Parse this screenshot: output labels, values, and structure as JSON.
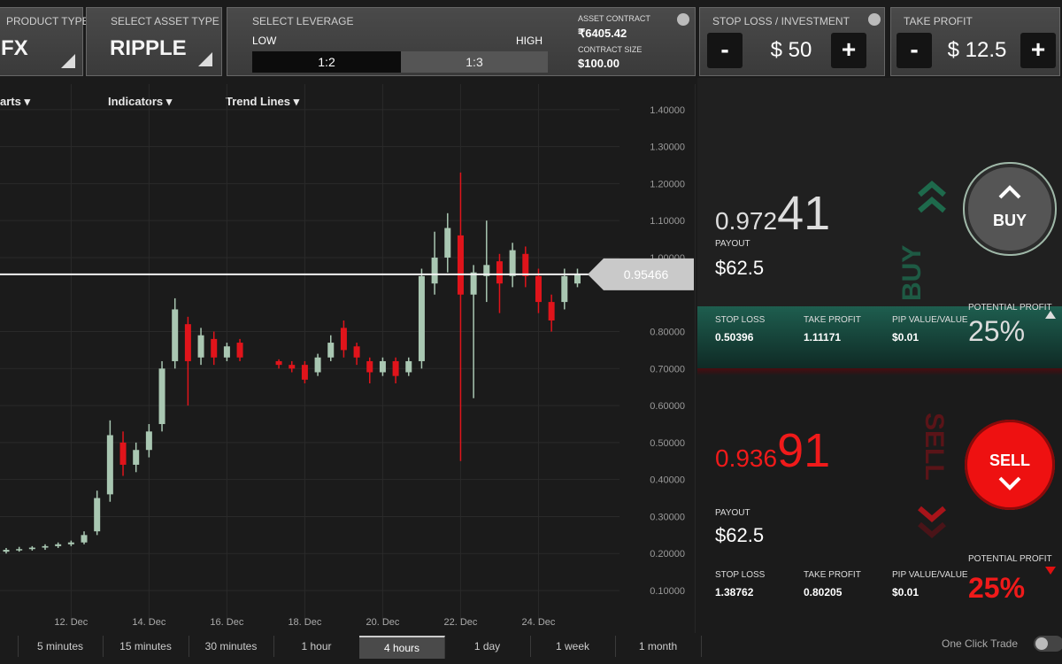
{
  "header": {
    "product": {
      "label": "PRODUCT TYPE",
      "value": "FX"
    },
    "asset": {
      "label": "SELECT ASSET TYPE",
      "value": "RIPPLE"
    },
    "leverage": {
      "label": "SELECT LEVERAGE",
      "low": "LOW",
      "high": "HIGH",
      "options": [
        "1:2",
        "1:3"
      ]
    },
    "contract": {
      "asset_label": "ASSET CONTRACT",
      "asset_value": "₹6405.42",
      "size_label": "CONTRACT SIZE",
      "size_value": "$100.00"
    },
    "stop_loss": {
      "label": "STOP LOSS / INVESTMENT",
      "minus": "-",
      "value": "$ 50",
      "plus": "+"
    },
    "take_profit": {
      "label": "TAKE PROFIT",
      "minus": "-",
      "value": "$ 12.5",
      "plus": "+"
    }
  },
  "toolbar": [
    "arts",
    "Indicators",
    "Trend Lines"
  ],
  "chart_data": {
    "type": "candlestick",
    "up_color": "#a9c7b2",
    "down_color": "#e0141b",
    "grid": true,
    "categories": [
      null,
      null,
      null,
      null,
      null,
      "12. Dec",
      null,
      null,
      null,
      null,
      null,
      "14. Dec",
      null,
      null,
      null,
      null,
      null,
      "16. Dec",
      null,
      null,
      null,
      null,
      null,
      "18. Dec",
      null,
      null,
      null,
      null,
      null,
      "20. Dec",
      null,
      null,
      null,
      null,
      null,
      "22. Dec",
      null,
      null,
      null,
      null,
      null,
      "24. Dec",
      null,
      null,
      null
    ],
    "open": [
      0.205,
      0.21,
      0.212,
      0.216,
      0.22,
      0.225,
      0.23,
      0.26,
      0.36,
      0.5,
      0.44,
      0.48,
      0.55,
      0.72,
      0.82,
      0.73,
      0.78,
      0.73,
      0.77,
      null,
      null,
      0.72,
      0.71,
      0.71,
      0.69,
      0.73,
      0.81,
      0.76,
      0.72,
      0.69,
      0.72,
      0.69,
      0.72,
      0.93,
      1.0,
      1.06,
      0.9,
      0.95,
      0.99,
      0.95,
      1.01,
      0.95,
      0.88,
      0.88,
      0.93
    ],
    "close": [
      0.21,
      0.212,
      0.216,
      0.22,
      0.225,
      0.23,
      0.25,
      0.35,
      0.52,
      0.44,
      0.48,
      0.53,
      0.7,
      0.86,
      0.72,
      0.79,
      0.73,
      0.76,
      0.73,
      null,
      null,
      0.71,
      0.7,
      0.67,
      0.73,
      0.77,
      0.75,
      0.73,
      0.69,
      0.72,
      0.68,
      0.72,
      0.95,
      1.0,
      1.08,
      0.9,
      0.96,
      0.98,
      0.93,
      1.02,
      0.95,
      0.88,
      0.83,
      0.95,
      0.95466
    ],
    "high": [
      0.215,
      0.218,
      0.22,
      0.225,
      0.23,
      0.235,
      0.26,
      0.37,
      0.56,
      0.53,
      0.5,
      0.55,
      0.72,
      0.89,
      0.84,
      0.81,
      0.8,
      0.77,
      0.78,
      null,
      null,
      0.725,
      0.72,
      0.72,
      0.74,
      0.79,
      0.83,
      0.77,
      0.73,
      0.73,
      0.73,
      0.73,
      0.97,
      1.07,
      1.12,
      1.23,
      0.98,
      1.1,
      1.01,
      1.04,
      1.03,
      0.97,
      0.9,
      0.97,
      0.97
    ],
    "low": [
      0.2,
      0.205,
      0.208,
      0.21,
      0.215,
      0.22,
      0.225,
      0.25,
      0.34,
      0.41,
      0.42,
      0.46,
      0.53,
      0.7,
      0.6,
      0.71,
      0.71,
      0.72,
      0.72,
      null,
      null,
      0.7,
      0.69,
      0.66,
      0.68,
      0.72,
      0.73,
      0.71,
      0.66,
      0.68,
      0.66,
      0.68,
      0.7,
      0.9,
      0.96,
      0.45,
      0.62,
      0.88,
      0.85,
      0.92,
      0.92,
      0.85,
      0.8,
      0.86,
      0.92
    ],
    "current_price": 0.95466,
    "ylim": [
      0.045,
      1.457
    ],
    "yticks": [
      {
        "value": 0.1,
        "label": "0.10000"
      },
      {
        "value": 0.2,
        "label": "0.20000"
      },
      {
        "value": 0.3,
        "label": "0.30000"
      },
      {
        "value": 0.4,
        "label": "0.40000"
      },
      {
        "value": 0.5,
        "label": "0.50000"
      },
      {
        "value": 0.6,
        "label": "0.60000"
      },
      {
        "value": 0.7,
        "label": "0.70000"
      },
      {
        "value": 0.8,
        "label": "0.80000"
      },
      {
        "value": 1.0,
        "label": "1.00000"
      },
      {
        "value": 1.1,
        "label": "1.10000"
      },
      {
        "value": 1.2,
        "label": "1.20000"
      },
      {
        "value": 1.3,
        "label": "1.30000"
      },
      {
        "value": 1.4,
        "label": "1.40000"
      }
    ]
  },
  "timeframes": [
    "5 minutes",
    "15 minutes",
    "30 minutes",
    "1 hour",
    "4 hours",
    "1 day",
    "1 week",
    "1 month"
  ],
  "buy": {
    "price_main": "0.972",
    "price_pips": "41",
    "payout_label": "PAYOUT",
    "payout": "$62.5",
    "button": "BUY",
    "side_label": "BUY",
    "stop_loss_label": "STOP LOSS",
    "stop_loss": "0.50396",
    "take_profit_label": "TAKE PROFIT",
    "take_profit": "1.11171",
    "pip_label": "PIP VALUE/VALUE",
    "pip": "$0.01",
    "profit_label": "POTENTIAL PROFIT",
    "profit": "25%"
  },
  "sell": {
    "price_main": "0.936",
    "price_pips": "91",
    "payout_label": "PAYOUT",
    "payout": "$62.5",
    "button": "SELL",
    "side_label": "SELL",
    "stop_loss_label": "STOP LOSS",
    "stop_loss": "1.38762",
    "take_profit_label": "TAKE PROFIT",
    "take_profit": "0.80205",
    "pip_label": "PIP VALUE/VALUE",
    "pip": "$0.01",
    "profit_label": "POTENTIAL PROFIT",
    "profit": "25%"
  },
  "one_click": "One Click Trade"
}
